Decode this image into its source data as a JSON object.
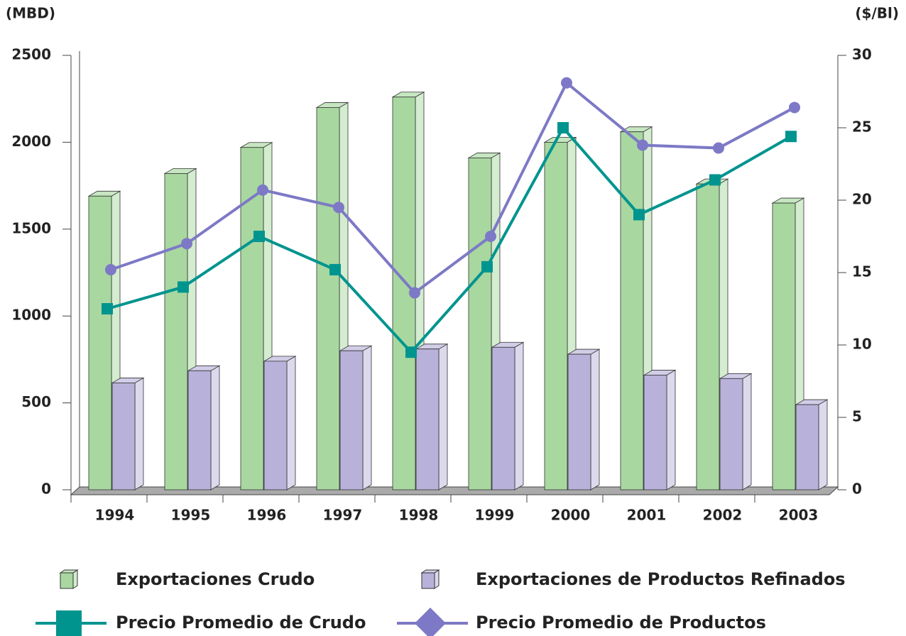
{
  "chart_data": {
    "type": "bar",
    "y_label": "(MBD)",
    "y2_label": "($/Bl)",
    "categories": [
      "1994",
      "1995",
      "1996",
      "1997",
      "1998",
      "1999",
      "2000",
      "2001",
      "2002",
      "2003"
    ],
    "series": [
      {
        "name": "Exportaciones Crudo",
        "color": "#a8d8a0",
        "values": [
          1690,
          1820,
          1970,
          2200,
          2260,
          1910,
          2000,
          2060,
          1760,
          1650
        ]
      },
      {
        "name": "Exportaciones de Productos Refinados",
        "color": "#b8b2da",
        "values": [
          615,
          685,
          740,
          800,
          810,
          820,
          780,
          660,
          640,
          490
        ]
      },
      {
        "name": "Precio Promedio de Crudo",
        "color": "#00948f",
        "axis": "y2",
        "type": "line",
        "values": [
          12.5,
          14.0,
          17.5,
          15.2,
          9.5,
          15.4,
          25.0,
          19.0,
          21.4,
          24.4
        ]
      },
      {
        "name": "Precio Promedio de Productos",
        "color": "#7d79c6",
        "axis": "y2",
        "type": "line",
        "values": [
          15.2,
          17.0,
          20.7,
          19.5,
          13.6,
          17.5,
          28.1,
          23.8,
          23.6,
          26.4
        ]
      }
    ],
    "ylim": [
      0,
      2500
    ],
    "yticks": [
      0,
      500,
      1000,
      1500,
      2000,
      2500
    ],
    "y2lim": [
      0,
      30
    ],
    "y2ticks": [
      0,
      5,
      10,
      15,
      20,
      25,
      30
    ]
  }
}
